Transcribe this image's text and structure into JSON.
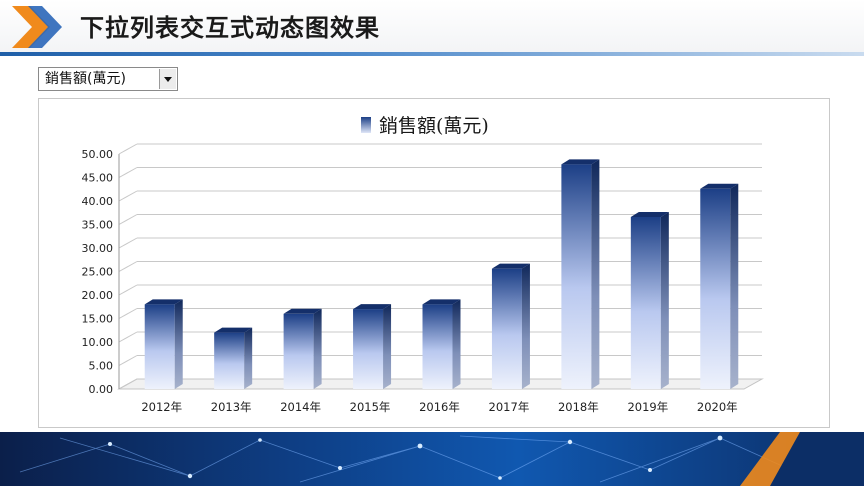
{
  "slide": {
    "title": "下拉列表交互式动态图效果"
  },
  "dropdown": {
    "selected": "銷售額(萬元)"
  },
  "colors": {
    "bar_top": "#1c3f86",
    "bar_bottom": "#eef2fc",
    "accent": "#f08a1c",
    "header_line": "#1f5fa8"
  },
  "chart_data": {
    "type": "bar",
    "title": "",
    "legend": {
      "entries": [
        "銷售額(萬元)"
      ],
      "placement": "top"
    },
    "categories": [
      "2012年",
      "2013年",
      "2014年",
      "2015年",
      "2016年",
      "2017年",
      "2018年",
      "2019年",
      "2020年"
    ],
    "series": [
      {
        "name": "銷售額(萬元)",
        "values": [
          18,
          12,
          16,
          17,
          18,
          25.6,
          47.8,
          36.6,
          42.6
        ]
      }
    ],
    "y_ticks": [
      "0.00",
      "5.00",
      "10.00",
      "15.00",
      "20.00",
      "25.00",
      "30.00",
      "35.00",
      "40.00",
      "45.00",
      "50.00"
    ],
    "ylim": [
      0,
      50
    ],
    "grid": true,
    "style": "3d-column"
  }
}
